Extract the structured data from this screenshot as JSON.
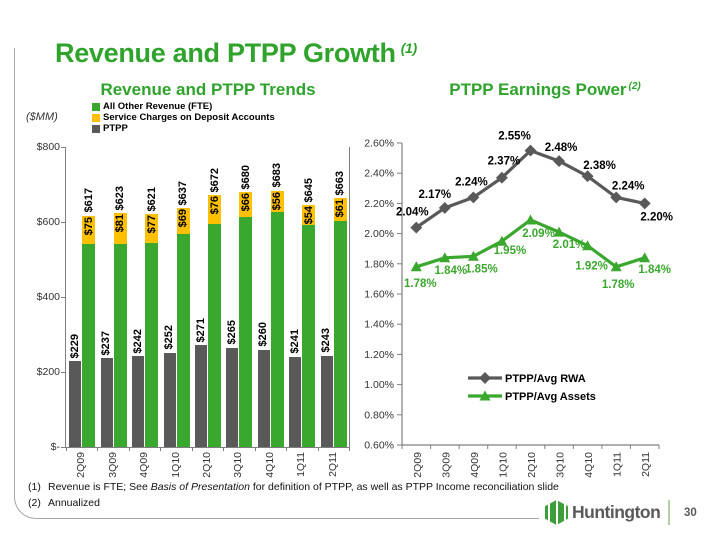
{
  "slide": {
    "title": "Revenue and PTPP Growth",
    "title_note": "(1)",
    "footnotes": [
      {
        "marker": "(1)",
        "text_before": "Revenue is FTE; See ",
        "text_italic": "Basis of Presentation",
        "text_after": " for definition of PTPP, as well as PTPP Income reconciliation slide"
      },
      {
        "marker": "(2)",
        "text_before": "Annualized",
        "text_italic": "",
        "text_after": ""
      }
    ],
    "footer": {
      "logo_text": "Huntington",
      "page_number": "30"
    }
  },
  "colors": {
    "title_green": "#2fa32c",
    "bar_green": "#3aa72f",
    "bar_yellow": "#ffc000",
    "bar_gray": "#595959",
    "line_gray": "#595959",
    "line_green": "#3aa72f",
    "axis_gray": "#7f7f7f",
    "logo_gray": "#58595b"
  },
  "chart_data": [
    {
      "type": "bar",
      "title": "Revenue and PTPP Trends",
      "axis_unit": "($MM)",
      "categories": [
        "2Q09",
        "3Q09",
        "4Q09",
        "1Q10",
        "2Q10",
        "3Q10",
        "4Q10",
        "1Q11",
        "2Q11"
      ],
      "series": [
        {
          "name": "All Other Revenue (FTE)",
          "color": "#3aa72f",
          "values": [
            542,
            542,
            544,
            568,
            596,
            614,
            627,
            591,
            602
          ]
        },
        {
          "name": "Service Charges on Deposit Accounts",
          "color": "#ffc000",
          "values": [
            75,
            81,
            77,
            69,
            76,
            66,
            56,
            54,
            61
          ],
          "labels": [
            "$75",
            "$81",
            "$77",
            "$69",
            "$76",
            "$66",
            "$56",
            "$54",
            "$61"
          ]
        },
        {
          "name": "PTPP",
          "color": "#595959",
          "values": [
            229,
            237,
            242,
            252,
            271,
            265,
            260,
            241,
            243
          ],
          "labels": [
            "$229",
            "$237",
            "$242",
            "$252",
            "$271",
            "$265",
            "$260",
            "$241",
            "$243"
          ]
        }
      ],
      "totals": {
        "values": [
          617,
          623,
          621,
          637,
          672,
          680,
          683,
          645,
          663
        ],
        "labels": [
          "$617",
          "$623",
          "$621",
          "$637",
          "$672",
          "$680",
          "$683",
          "$645",
          "$663"
        ]
      },
      "ylim": [
        0,
        800
      ],
      "yticks": [
        "$800",
        "$600",
        "$400",
        "$200",
        "$-"
      ],
      "legend_position": "top-left",
      "grid": false
    },
    {
      "type": "line",
      "title": "PTPP Earnings Power",
      "title_note": "(2)",
      "categories": [
        "2Q09",
        "3Q09",
        "4Q09",
        "1Q10",
        "2Q10",
        "3Q10",
        "4Q10",
        "1Q11",
        "2Q11"
      ],
      "series": [
        {
          "name": "PTPP/Avg RWA",
          "color": "#595959",
          "marker": "diamond",
          "label_color": "#000000",
          "values": [
            2.04,
            2.17,
            2.24,
            2.37,
            2.55,
            2.48,
            2.38,
            2.24,
            2.2
          ],
          "labels": [
            "2.04%",
            "2.17%",
            "2.24%",
            "2.37%",
            "2.55%",
            "2.48%",
            "2.38%",
            "2.24%",
            "2.20%"
          ]
        },
        {
          "name": "PTPP/Avg Assets",
          "color": "#3aa72f",
          "marker": "triangle",
          "label_color": "#3aa72f",
          "values": [
            1.78,
            1.84,
            1.85,
            1.95,
            2.09,
            2.01,
            1.92,
            1.78,
            1.84
          ],
          "labels": [
            "1.78%",
            "1.84%",
            "1.85%",
            "1.95%",
            "2.09%",
            "2.01%",
            "1.92%",
            "1.78%",
            "1.84%"
          ]
        }
      ],
      "ylim": [
        0.6,
        2.6
      ],
      "ytick_step": 0.2,
      "ytick_labels": [
        "2.60%",
        "2.40%",
        "2.20%",
        "2.00%",
        "1.80%",
        "1.60%",
        "1.40%",
        "1.20%",
        "1.00%",
        "0.80%",
        "0.60%"
      ],
      "legend_position": "inside-bottom",
      "grid": false
    }
  ]
}
